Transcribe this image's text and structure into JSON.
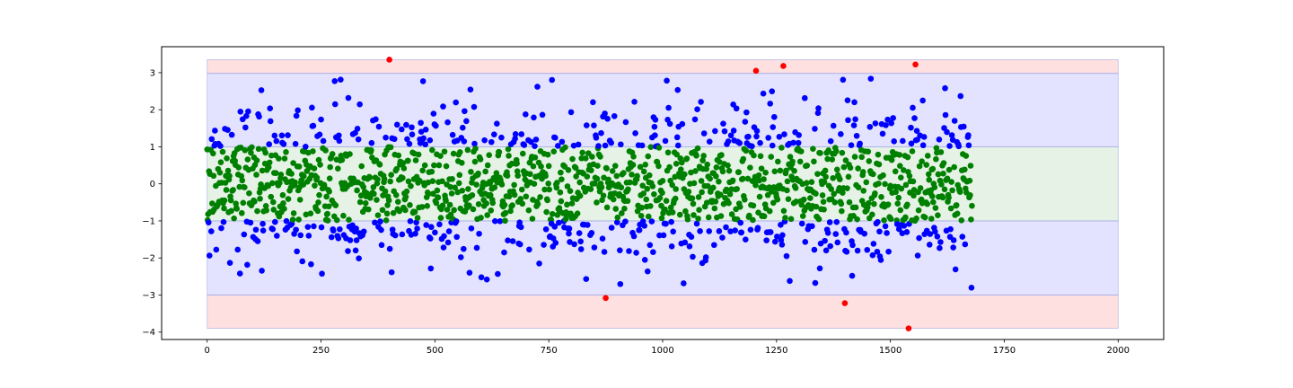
{
  "chart_data": {
    "type": "scatter",
    "title": "",
    "xlabel": "",
    "ylabel": "",
    "xlim": [
      -100,
      2100
    ],
    "ylim": [
      -4.2,
      3.7
    ],
    "grid": false,
    "legend": "none",
    "x_ticks": [
      0,
      250,
      500,
      750,
      1000,
      1250,
      1500,
      1750,
      2000
    ],
    "y_ticks": [
      3,
      2,
      1,
      0,
      -1,
      -2,
      -3,
      -4
    ],
    "bands": [
      {
        "y0": 2.98,
        "y1": 3.35,
        "color": "#ff0000",
        "alpha": 0.12
      },
      {
        "y0": -3.9,
        "y1": -3.0,
        "color": "#ff0000",
        "alpha": 0.12
      },
      {
        "y0": 1.0,
        "y1": 2.98,
        "color": "#0000ff",
        "alpha": 0.11
      },
      {
        "y0": -3.0,
        "y1": -1.0,
        "color": "#0000ff",
        "alpha": 0.11
      },
      {
        "y0": -1.0,
        "y1": 1.0,
        "color": "#008000",
        "alpha": 0.1
      }
    ],
    "band_x_range": [
      0,
      2000
    ],
    "band_edge_color": "#9fa6e6",
    "n_points": 1680,
    "point_colors": {
      "within_1": "#008000",
      "within_3": "#0000ff",
      "beyond_3": "#ff0000"
    },
    "outliers": [
      {
        "x": 400,
        "y": 3.35
      },
      {
        "x": 1205,
        "y": 3.05
      },
      {
        "x": 1265,
        "y": 3.18
      },
      {
        "x": 1555,
        "y": 3.22
      },
      {
        "x": 875,
        "y": -3.08
      },
      {
        "x": 1400,
        "y": -3.22
      },
      {
        "x": 1540,
        "y": -3.9
      }
    ]
  }
}
